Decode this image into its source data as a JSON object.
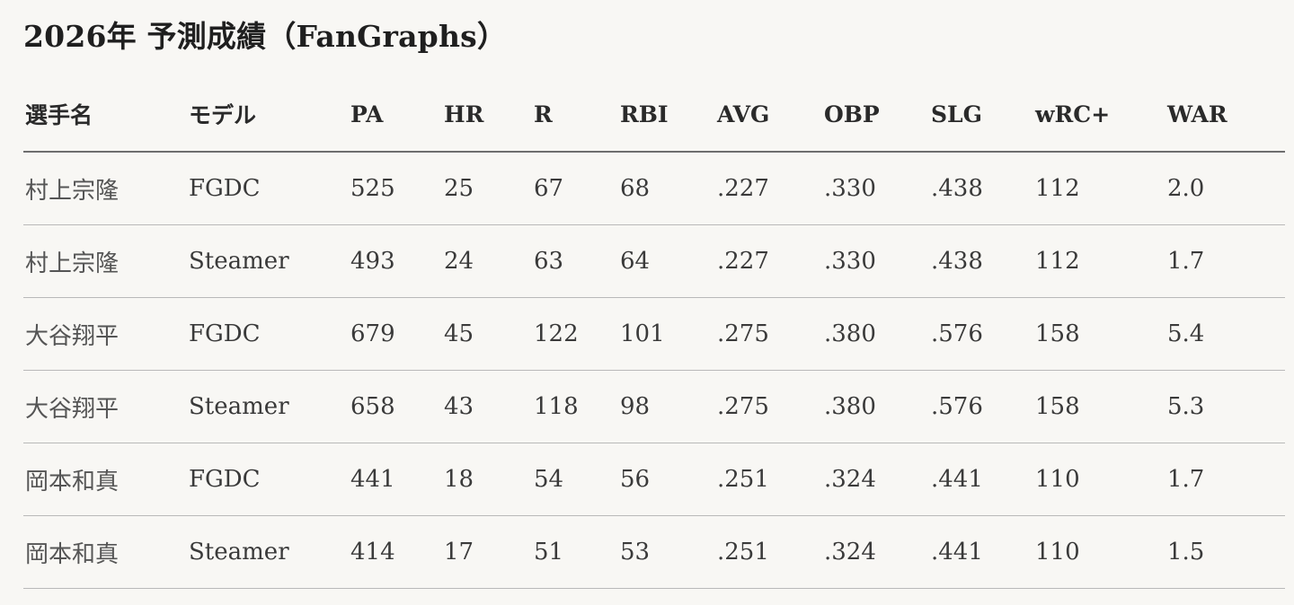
{
  "title": "2026年 予測成績（FanGraphs）",
  "table": {
    "columns": [
      "選手名",
      "モデル",
      "PA",
      "HR",
      "R",
      "RBI",
      "AVG",
      "OBP",
      "SLG",
      "wRC+",
      "WAR"
    ],
    "rows": [
      [
        "村上宗隆",
        "FGDC",
        "525",
        "25",
        "67",
        "68",
        ".227",
        ".330",
        ".438",
        "112",
        "2.0"
      ],
      [
        "村上宗隆",
        "Steamer",
        "493",
        "24",
        "63",
        "64",
        ".227",
        ".330",
        ".438",
        "112",
        "1.7"
      ],
      [
        "大谷翔平",
        "FGDC",
        "679",
        "45",
        "122",
        "101",
        ".275",
        ".380",
        ".576",
        "158",
        "5.4"
      ],
      [
        "大谷翔平",
        "Steamer",
        "658",
        "43",
        "118",
        "98",
        ".275",
        ".380",
        ".576",
        "158",
        "5.3"
      ],
      [
        "岡本和真",
        "FGDC",
        "441",
        "18",
        "54",
        "56",
        ".251",
        ".324",
        ".441",
        "110",
        "1.7"
      ],
      [
        "岡本和真",
        "Steamer",
        "414",
        "17",
        "51",
        "53",
        ".251",
        ".324",
        ".441",
        "110",
        "1.5"
      ]
    ]
  }
}
